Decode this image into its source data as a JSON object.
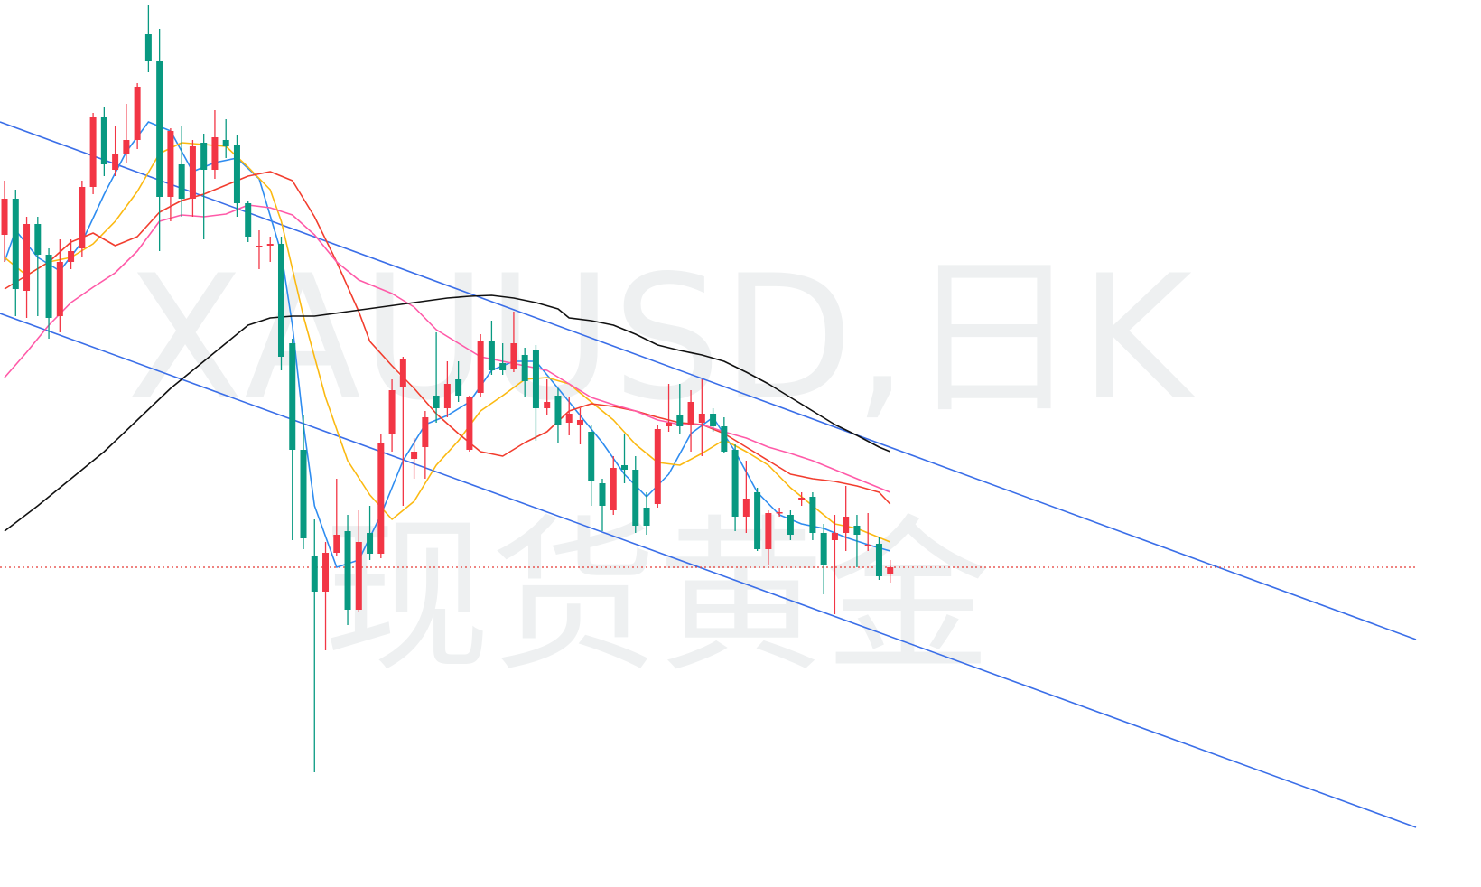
{
  "chart_data": {
    "type": "candlestick",
    "watermark_title": "XAUUSD,日K",
    "watermark_subtitle": "现货黄金",
    "up_color": "#f23645",
    "down_color": "#089981",
    "xlim": [
      -0.41,
      127.5
    ],
    "ylim": [
      18,
      1000
    ],
    "open": [
      740,
      780,
      678,
      752,
      718,
      650,
      710,
      725,
      793,
      870,
      812,
      830,
      845,
      962,
      932,
      782,
      818,
      780,
      842,
      812,
      845,
      840,
      775,
      726,
      728,
      730,
      620,
      502,
      385,
      345,
      388,
      412,
      325,
      410,
      387,
      520,
      572,
      492,
      505,
      562,
      548,
      580,
      502,
      565,
      622,
      598,
      592,
      607,
      612,
      548,
      562,
      532,
      530,
      522,
      465,
      435,
      485,
      480,
      438,
      442,
      528,
      540,
      530,
      532,
      542,
      528,
      502,
      428,
      455,
      392,
      432,
      430,
      447,
      450,
      410,
      402,
      410,
      418,
      395,
      398,
      365
    ],
    "high": [
      800,
      790,
      760,
      760,
      725,
      735,
      735,
      800,
      875,
      882,
      860,
      885,
      908,
      995,
      968,
      858,
      860,
      845,
      852,
      878,
      868,
      850,
      778,
      745,
      738,
      738,
      625,
      540,
      425,
      400,
      470,
      430,
      435,
      440,
      520,
      580,
      605,
      515,
      545,
      632,
      600,
      600,
      562,
      630,
      645,
      620,
      655,
      615,
      618,
      580,
      570,
      560,
      548,
      530,
      470,
      495,
      520,
      495,
      455,
      530,
      575,
      575,
      568,
      580,
      548,
      538,
      508,
      490,
      460,
      435,
      438,
      435,
      455,
      455,
      420,
      430,
      462,
      430,
      432,
      405,
      380
    ],
    "low": [
      710,
      650,
      648,
      650,
      625,
      632,
      702,
      715,
      785,
      805,
      805,
      820,
      835,
      920,
      722,
      755,
      760,
      760,
      735,
      802,
      825,
      760,
      732,
      702,
      710,
      590,
      402,
      392,
      145,
      280,
      385,
      308,
      322,
      380,
      382,
      500,
      440,
      470,
      470,
      532,
      538,
      555,
      500,
      560,
      585,
      585,
      588,
      560,
      512,
      540,
      510,
      518,
      508,
      440,
      412,
      430,
      465,
      410,
      408,
      438,
      522,
      520,
      500,
      495,
      522,
      498,
      412,
      410,
      390,
      375,
      428,
      402,
      440,
      402,
      342,
      320,
      390,
      372,
      390,
      358,
      355
    ],
    "close": [
      780,
      680,
      752,
      718,
      648,
      710,
      722,
      793,
      870,
      818,
      830,
      845,
      904,
      932,
      782,
      855,
      780,
      838,
      812,
      848,
      838,
      775,
      738,
      728,
      730,
      605,
      502,
      404,
      345,
      388,
      408,
      325,
      400,
      387,
      510,
      568,
      602,
      500,
      538,
      548,
      575,
      562,
      560,
      622,
      590,
      590,
      620,
      578,
      548,
      555,
      530,
      542,
      535,
      468,
      440,
      482,
      480,
      418,
      418,
      525,
      532,
      528,
      555,
      542,
      528,
      500,
      428,
      448,
      392,
      432,
      433,
      408,
      449,
      410,
      375,
      410,
      428,
      408,
      397,
      362,
      372
    ],
    "lines": [
      {
        "color": "#2e8cf0",
        "x": [
          0,
          1,
          3,
          5,
          7,
          9,
          11,
          13,
          15,
          17,
          19,
          21,
          23,
          25,
          26,
          27,
          28,
          30,
          32,
          34,
          36,
          38,
          40,
          42,
          44,
          46,
          48,
          50,
          52,
          54,
          56,
          58,
          60,
          62,
          64,
          66,
          68,
          70,
          72,
          74,
          76,
          78,
          80
        ],
        "values": [
          710,
          745,
          715,
          700,
          732,
          785,
          832,
          865,
          855,
          810,
          820,
          825,
          802,
          720,
          640,
          530,
          440,
          372,
          380,
          430,
          490,
          530,
          540,
          555,
          590,
          600,
          600,
          570,
          540,
          510,
          475,
          450,
          475,
          520,
          538,
          500,
          455,
          430,
          420,
          415,
          405,
          397,
          390
        ]
      },
      {
        "color": "#fbb911",
        "x": [
          0,
          2,
          4,
          6,
          8,
          10,
          12,
          14,
          16,
          18,
          20,
          22,
          24,
          25,
          27,
          29,
          31,
          33,
          35,
          37,
          39,
          41,
          43,
          45,
          47,
          49,
          51,
          53,
          55,
          57,
          59,
          61,
          63,
          65,
          67,
          69,
          71,
          73,
          75,
          77,
          80
        ],
        "values": [
          715,
          695,
          710,
          715,
          730,
          755,
          788,
          830,
          842,
          840,
          838,
          815,
          790,
          755,
          650,
          560,
          490,
          452,
          425,
          445,
          485,
          512,
          545,
          562,
          580,
          582,
          575,
          555,
          535,
          508,
          488,
          485,
          498,
          513,
          500,
          485,
          460,
          440,
          420,
          415,
          400
        ]
      },
      {
        "color": "#f23d2e",
        "x": [
          0,
          2,
          4,
          6,
          8,
          10,
          12,
          14,
          16,
          18,
          20,
          22,
          24,
          26,
          28,
          30,
          32,
          33,
          35,
          37,
          39,
          41,
          43,
          45,
          47,
          49,
          51,
          53,
          55,
          57,
          59,
          61,
          63,
          65,
          67,
          69,
          71,
          73,
          75,
          77,
          79,
          80
        ],
        "values": [
          680,
          695,
          710,
          732,
          742,
          728,
          738,
          765,
          778,
          785,
          795,
          805,
          810,
          800,
          760,
          710,
          655,
          622,
          595,
          570,
          542,
          520,
          500,
          495,
          510,
          522,
          545,
          553,
          550,
          545,
          538,
          532,
          530,
          520,
          505,
          490,
          475,
          470,
          467,
          462,
          455,
          442
        ]
      },
      {
        "color": "#ff5aa8",
        "x": [
          0,
          2,
          4,
          6,
          8,
          10,
          12,
          14,
          16,
          18,
          20,
          22,
          24,
          26,
          28,
          30,
          32,
          33,
          35,
          37,
          39,
          41,
          43,
          45,
          47,
          49,
          51,
          53,
          55,
          57,
          59,
          61,
          63,
          65,
          67,
          69,
          71,
          73,
          75,
          77,
          79,
          80
        ],
        "values": [
          582,
          610,
          640,
          665,
          682,
          698,
          722,
          755,
          762,
          760,
          763,
          773,
          770,
          762,
          740,
          710,
          690,
          685,
          675,
          660,
          635,
          620,
          605,
          600,
          595,
          590,
          575,
          560,
          552,
          545,
          535,
          530,
          530,
          522,
          515,
          505,
          498,
          490,
          480,
          470,
          460,
          455
        ]
      },
      {
        "color": "#111111",
        "x": [
          0,
          3,
          6,
          9,
          12,
          15,
          18,
          20,
          22,
          24,
          26,
          28,
          31,
          34,
          37,
          40,
          42,
          44,
          46,
          48,
          50,
          51,
          53,
          55,
          57,
          59,
          61,
          63,
          65,
          67,
          69,
          71,
          73,
          75,
          77,
          79,
          80
        ],
        "values": [
          412,
          440,
          470,
          500,
          535,
          570,
          600,
          620,
          640,
          648,
          650,
          650,
          655,
          660,
          665,
          670,
          672,
          673,
          670,
          665,
          658,
          648,
          645,
          640,
          630,
          618,
          612,
          607,
          600,
          588,
          575,
          560,
          545,
          530,
          518,
          505,
          500
        ]
      }
    ],
    "trendlines": [
      {
        "color": "#3a6ee8",
        "x": [
          -0.41,
          127.5
        ],
        "values": [
          865,
          292
        ]
      },
      {
        "color": "#3a6ee8",
        "x": [
          -0.41,
          127.5
        ],
        "values": [
          653,
          84
        ]
      }
    ],
    "price_line": 372,
    "price_line_color": "#e53935"
  }
}
